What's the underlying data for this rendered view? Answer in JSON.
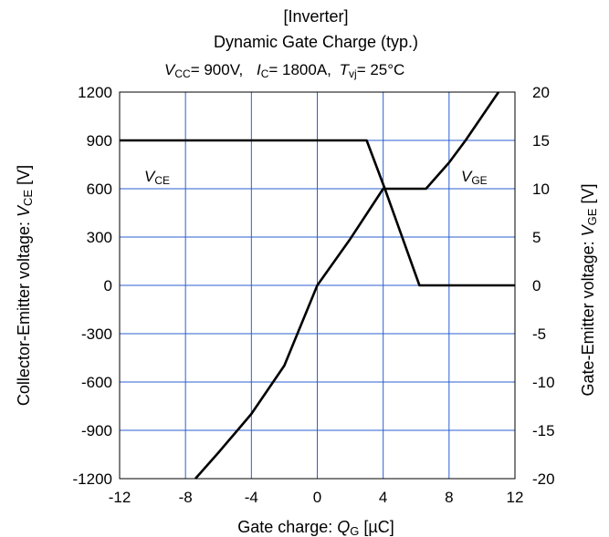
{
  "chart_data": {
    "type": "line",
    "title_line1": "[Inverter]",
    "title_line2": "Dynamic Gate Charge (typ.)",
    "conditions": {
      "vcc_sym": "V",
      "vcc_sub": "CC",
      "vcc_val": "=   900V,",
      "ic_sym": "I",
      "ic_sub": "C",
      "ic_val": "= 1800A,",
      "tvj_sym": "T",
      "tvj_sub": "vj",
      "tvj_val": "= 25°C"
    },
    "xlabel": {
      "text": "Gate charge:  ",
      "sym": "Q",
      "sub": "G",
      "unit": " [µC]"
    },
    "ylabel_left": {
      "text": "Collector-Emitter voltage:  ",
      "sym": "V",
      "sub": "CE",
      "unit": " [V]"
    },
    "ylabel_right": {
      "text": "Gate-Emitter voltage:  ",
      "sym": "V",
      "sub": "GE",
      "unit": " [V]"
    },
    "xlim": [
      -12,
      12
    ],
    "ylim_left": [
      -1200,
      1200
    ],
    "ylim_right": [
      -20,
      20
    ],
    "x_ticks": [
      -12,
      -8,
      -4,
      0,
      4,
      8,
      12
    ],
    "y_left_ticks": [
      -1200,
      -900,
      -600,
      -300,
      0,
      300,
      600,
      900,
      1200
    ],
    "y_right_ticks": [
      -20,
      -15,
      -10,
      -5,
      0,
      5,
      10,
      15,
      20
    ],
    "grid": true,
    "colors": {
      "grid": "#2b5fd0",
      "line": "#000000"
    },
    "series": [
      {
        "name": "VCE",
        "label_sym": "V",
        "label_sub": "CE",
        "axis": "left",
        "x": [
          -12,
          3,
          4.1,
          6.2,
          6.5,
          12
        ],
        "y": [
          900,
          900,
          600,
          0,
          0,
          0
        ]
      },
      {
        "name": "VGE",
        "label_sym": "V",
        "label_sub": "GE",
        "axis": "right",
        "x": [
          -7.4,
          -6,
          -4,
          -2,
          0,
          2,
          4,
          6.6,
          8,
          9,
          11
        ],
        "y": [
          -20,
          -17.3,
          -13.3,
          -8.3,
          0,
          4.8,
          10,
          10,
          12.7,
          15,
          20
        ]
      }
    ]
  }
}
